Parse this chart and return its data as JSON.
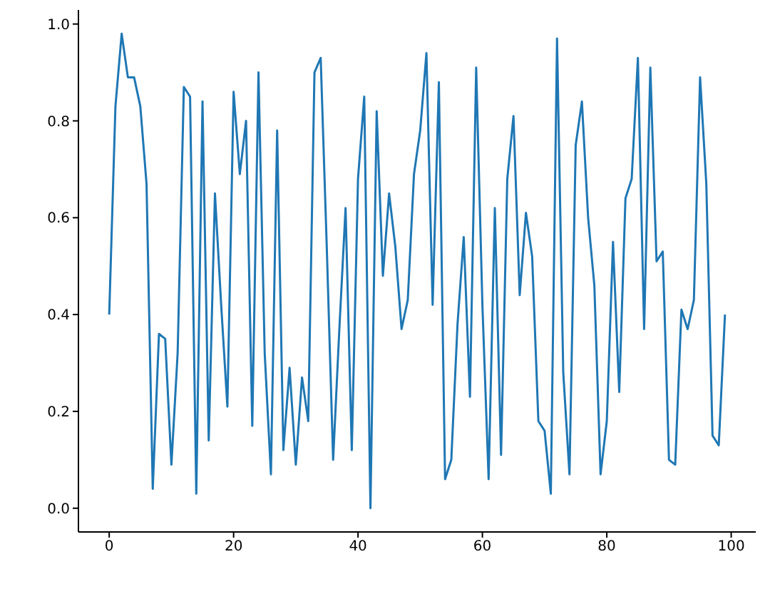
{
  "chart_data": {
    "type": "line",
    "x": [
      0,
      1,
      2,
      3,
      4,
      5,
      6,
      7,
      8,
      9,
      10,
      11,
      12,
      13,
      14,
      15,
      16,
      17,
      18,
      19,
      20,
      21,
      22,
      23,
      24,
      25,
      26,
      27,
      28,
      29,
      30,
      31,
      32,
      33,
      34,
      35,
      36,
      37,
      38,
      39,
      40,
      41,
      42,
      43,
      44,
      45,
      46,
      47,
      48,
      49,
      50,
      51,
      52,
      53,
      54,
      55,
      56,
      57,
      58,
      59,
      60,
      61,
      62,
      63,
      64,
      65,
      66,
      67,
      68,
      69,
      70,
      71,
      72,
      73,
      74,
      75,
      76,
      77,
      78,
      79,
      80,
      81,
      82,
      83,
      84,
      85,
      86,
      87,
      88,
      89,
      90,
      91,
      92,
      93,
      94,
      95,
      96,
      97,
      98,
      99
    ],
    "series": [
      {
        "color": "#1f77b4",
        "values": [
          0.4,
          0.83,
          0.98,
          0.89,
          0.89,
          0.83,
          0.67,
          0.04,
          0.36,
          0.35,
          0.09,
          0.32,
          0.87,
          0.85,
          0.03,
          0.84,
          0.14,
          0.65,
          0.42,
          0.21,
          0.86,
          0.69,
          0.8,
          0.17,
          0.9,
          0.32,
          0.07,
          0.78,
          0.12,
          0.29,
          0.09,
          0.27,
          0.18,
          0.9,
          0.93,
          0.53,
          0.1,
          0.37,
          0.62,
          0.12,
          0.68,
          0.85,
          0.0,
          0.82,
          0.48,
          0.65,
          0.54,
          0.37,
          0.43,
          0.69,
          0.78,
          0.94,
          0.42,
          0.88,
          0.06,
          0.1,
          0.38,
          0.56,
          0.23,
          0.91,
          0.42,
          0.06,
          0.62,
          0.11,
          0.68,
          0.81,
          0.44,
          0.61,
          0.52,
          0.18,
          0.16,
          0.03,
          0.97,
          0.28,
          0.07,
          0.75,
          0.84,
          0.6,
          0.46,
          0.07,
          0.18,
          0.55,
          0.24,
          0.64,
          0.68,
          0.93,
          0.37,
          0.91,
          0.51,
          0.53,
          0.1,
          0.09,
          0.41,
          0.37,
          0.43,
          0.89,
          0.67,
          0.15,
          0.13,
          0.4
        ]
      }
    ],
    "xlim": [
      -4.95,
      103.95
    ],
    "ylim": [
      -0.049,
      1.029
    ],
    "xticks": [
      0,
      20,
      40,
      60,
      80,
      100
    ],
    "yticks": [
      {
        "value": 0,
        "label": "0.0"
      },
      {
        "value": 0.2,
        "label": "0.2"
      },
      {
        "value": 0.4,
        "label": "0.4"
      },
      {
        "value": 0.6,
        "label": "0.6"
      },
      {
        "value": 0.8,
        "label": "0.8"
      },
      {
        "value": 1,
        "label": "1.0"
      }
    ],
    "grid": false,
    "legend": false,
    "marker": "none",
    "line_style": "solid"
  }
}
